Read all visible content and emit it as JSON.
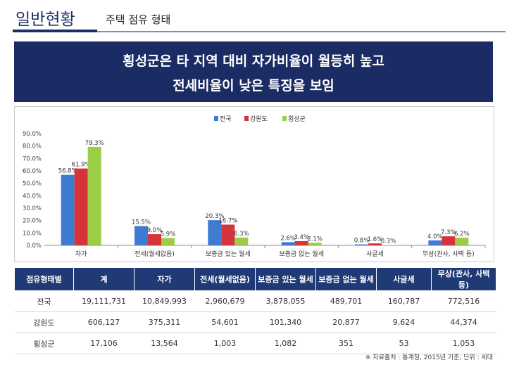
{
  "header": {
    "title": "일반현황",
    "subtitle": "주택 점유 형태"
  },
  "banner": {
    "line1": "횡성군은 타 지역 대비 자가비율이 월등히 높고",
    "line2": "전세비율이 낮은 특징을 보임"
  },
  "colors": {
    "navy": "#1a2c63",
    "series": [
      "#3f7bd1",
      "#d5343a",
      "#9bcd47"
    ]
  },
  "chart_data": {
    "type": "bar",
    "categories": [
      "자가",
      "전세(월세없음)",
      "보증금 있는 월세",
      "보증금 없는 월세",
      "사글세",
      "무상(관사, 사택 등)"
    ],
    "series": [
      {
        "name": "전국",
        "values": [
          56.8,
          15.5,
          20.3,
          2.6,
          0.8,
          4.0
        ],
        "labels": [
          "56.8%",
          "15.5%",
          "20.3%",
          "2.6%",
          "0.8%",
          "4.0%"
        ]
      },
      {
        "name": "강원도",
        "values": [
          61.9,
          9.0,
          16.7,
          3.4,
          1.6,
          7.3
        ],
        "labels": [
          "61.9%",
          "9.0%",
          "16.7%",
          "3.4%",
          "1.6%",
          "7.3%"
        ]
      },
      {
        "name": "횡성군",
        "values": [
          79.3,
          5.9,
          6.3,
          2.1,
          0.3,
          6.2
        ],
        "labels": [
          "79.3%",
          "5.9%",
          "6.3%",
          "2.1%",
          "0.3%",
          "6.2%"
        ]
      }
    ],
    "yticks": [
      "90.0%",
      "80.0%",
      "70.0%",
      "60.0%",
      "50.0%",
      "40.0%",
      "30.0%",
      "20.0%",
      "10.0%",
      "0.0%"
    ],
    "ylim": [
      0,
      90
    ],
    "grid": false,
    "legend": "top-center"
  },
  "table": {
    "headers": [
      "점유형태별",
      "계",
      "자가",
      "전세(월세없음)",
      "보증금 있는 월세",
      "보증금 없는 월세",
      "사글세",
      "무상(관사, 사택 등)"
    ],
    "rows": [
      [
        "전국",
        "19,111,731",
        "10,849,993",
        "2,960,679",
        "3,878,055",
        "489,701",
        "160,787",
        "772,516"
      ],
      [
        "강원도",
        "606,127",
        "375,311",
        "54,601",
        "101,340",
        "20,877",
        "9,624",
        "44,374"
      ],
      [
        "횡성군",
        "17,106",
        "13,564",
        "1,003",
        "1,082",
        "351",
        "53",
        "1,053"
      ]
    ]
  },
  "source_note": "※ 자료출처 : 통계청, 2015년 기준, 단위 : 세대"
}
